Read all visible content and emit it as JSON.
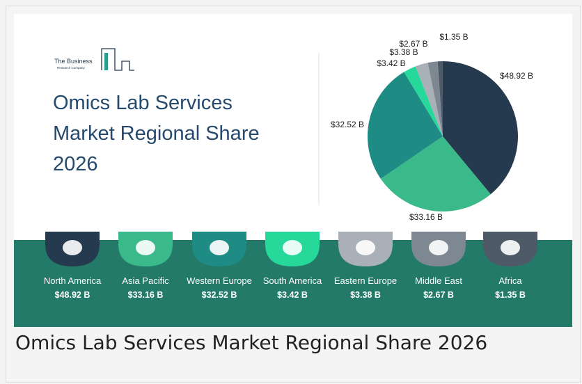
{
  "logo": [
    "The Business",
    "Research Company"
  ],
  "chart_data": {
    "type": "pie",
    "title": "Omics Lab Services Market Regional Share 2026",
    "categories": [
      "North America",
      "Asia Pacific",
      "Western Europe",
      "South America",
      "Eastern Europe",
      "Middle East",
      "Africa"
    ],
    "values": [
      48.92,
      33.16,
      32.52,
      3.42,
      3.38,
      2.67,
      1.35
    ],
    "value_labels": [
      "$48.92 B",
      "$33.16 B",
      "$32.52 B",
      "$3.42 B",
      "$3.38 B",
      "$2.67 B",
      "$1.35 B"
    ],
    "colors": [
      "#263a4f",
      "#3ab98a",
      "#1e8c84",
      "#27d89b",
      "#a9b0b8",
      "#7e8892",
      "#4e5a68"
    ]
  }
}
